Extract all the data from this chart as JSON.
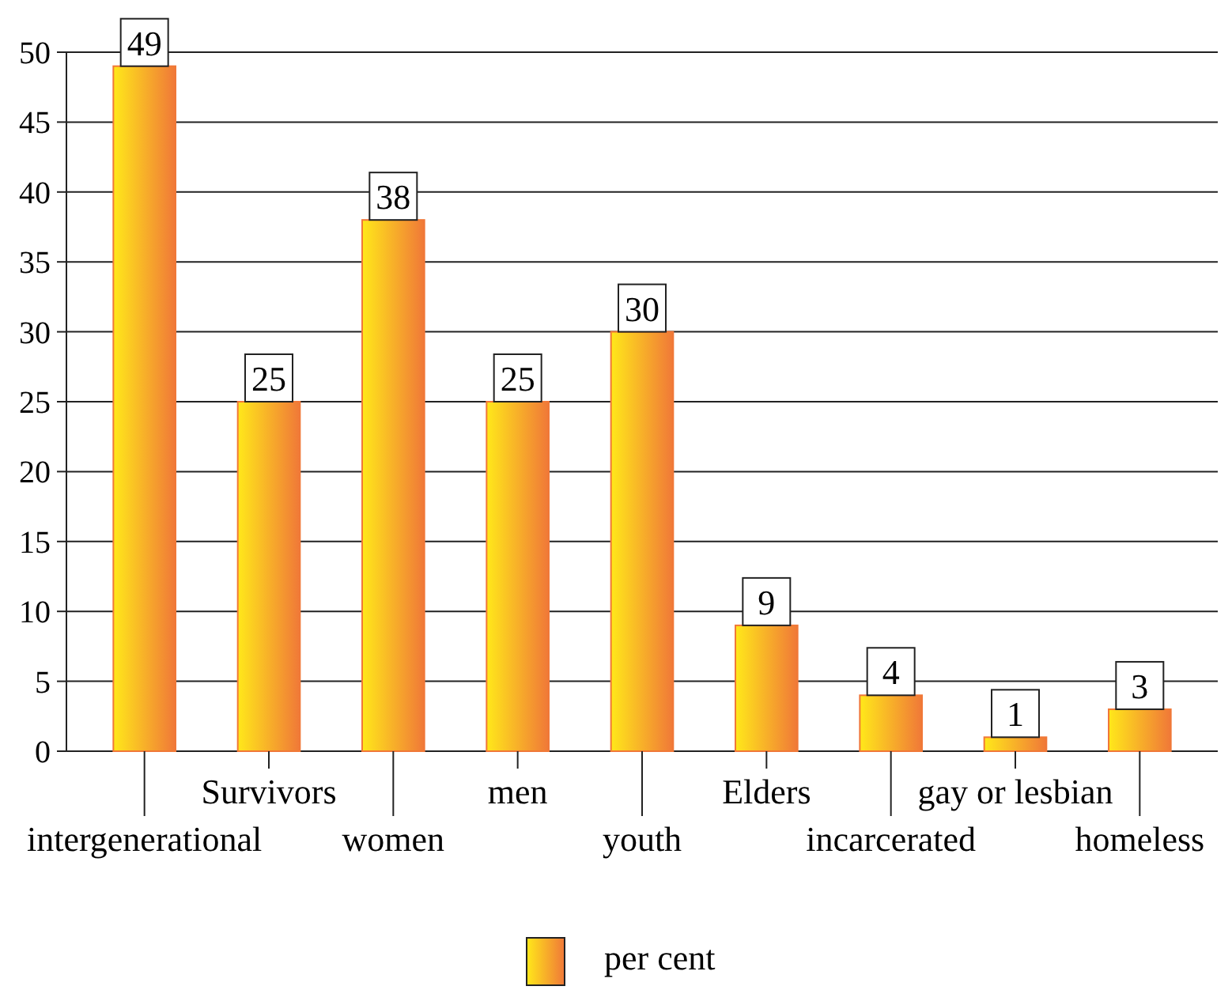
{
  "chart_data": {
    "type": "bar",
    "categories": [
      "intergenerational",
      "Survivors",
      "women",
      "men",
      "youth",
      "Elders",
      "incarcerated",
      "gay or lesbian",
      "homeless"
    ],
    "series": [
      {
        "name": "per cent",
        "color": "#f07838",
        "values": [
          49,
          25,
          38,
          25,
          30,
          9,
          4,
          1,
          3
        ]
      }
    ],
    "ylim": [
      0,
      50
    ],
    "yticks": [
      0,
      5,
      10,
      15,
      20,
      25,
      30,
      35,
      40,
      45,
      50
    ],
    "grid": "y",
    "data_labels": true,
    "legend": "bottom"
  }
}
